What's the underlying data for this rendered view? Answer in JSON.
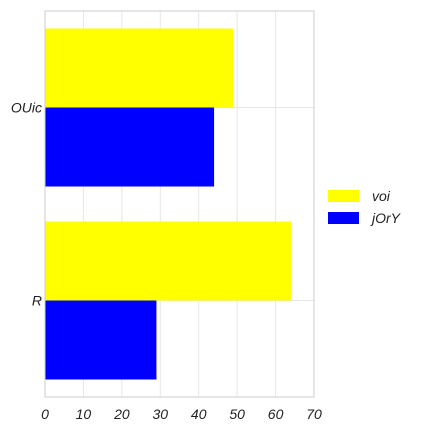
{
  "chart_data": {
    "type": "bar",
    "orientation": "horizontal",
    "categories": [
      "OUic",
      "R"
    ],
    "series": [
      {
        "name": "voi",
        "color": "#ffff00",
        "values": [
          49,
          64
        ]
      },
      {
        "name": "jOrY",
        "color": "#0000ff",
        "values": [
          44,
          29
        ]
      }
    ],
    "xlim": [
      0,
      70
    ],
    "xticks": [
      "0",
      "10",
      "20",
      "30",
      "40",
      "50",
      "60",
      "70"
    ],
    "grid": true,
    "legend_position": "right"
  }
}
